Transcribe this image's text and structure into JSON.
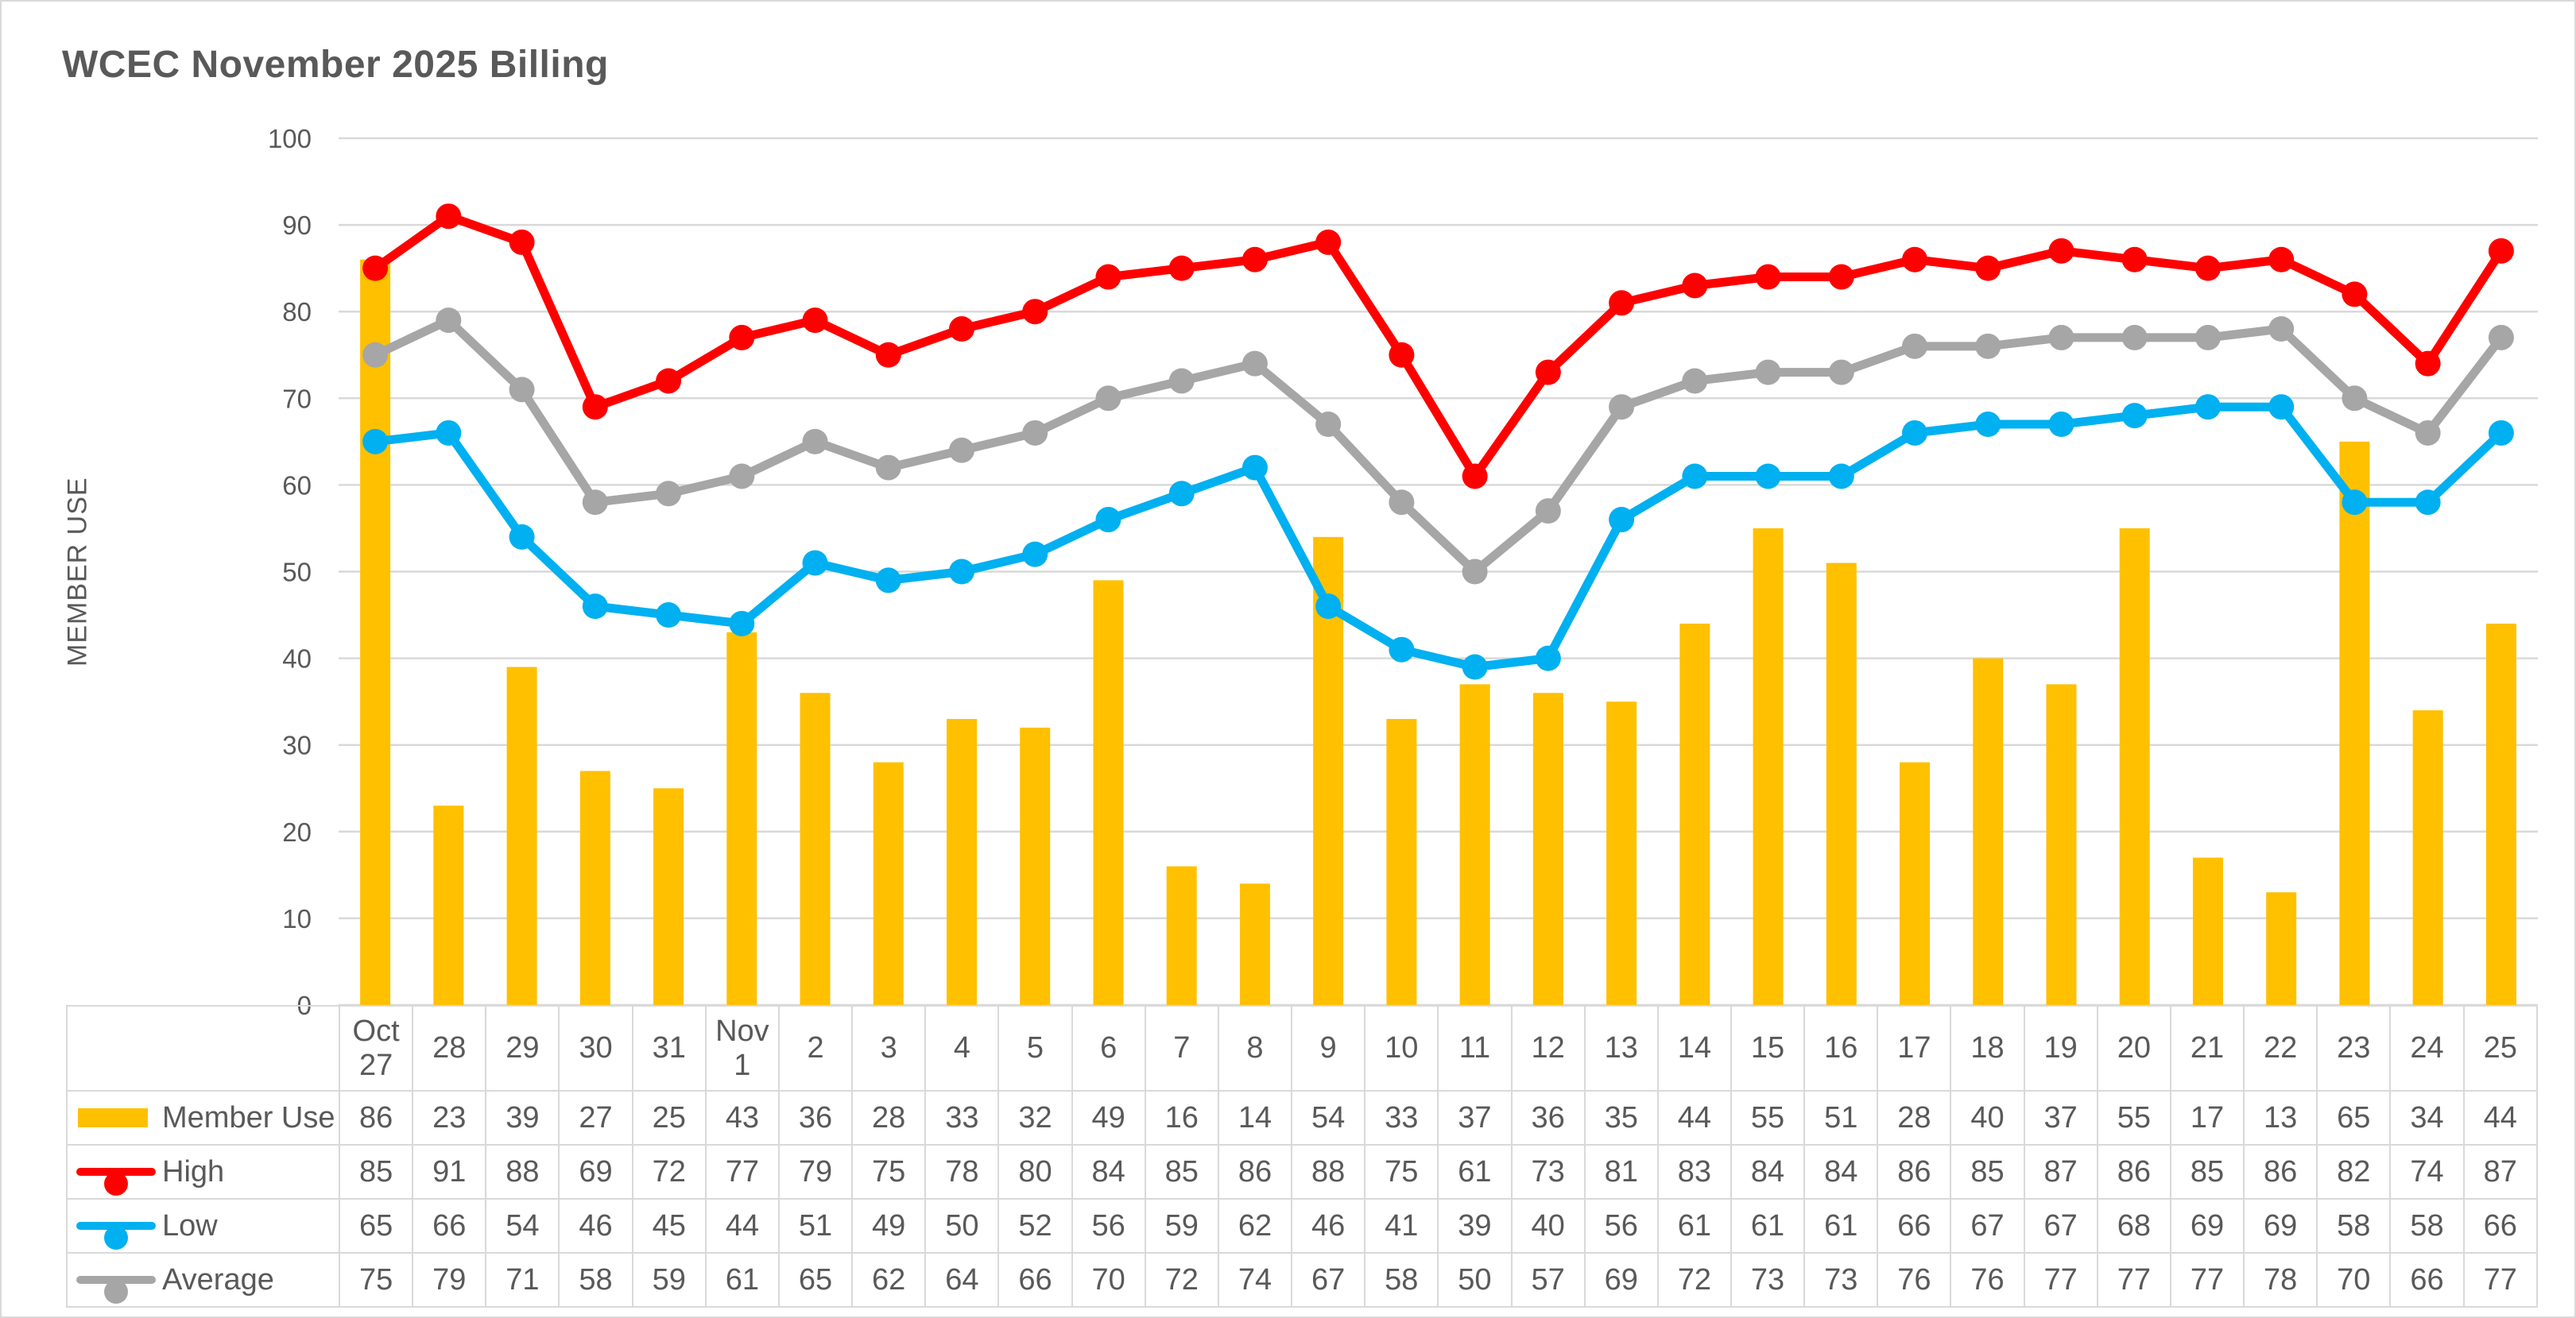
{
  "page": {
    "title": "WCEC November 2025 Billing"
  },
  "chart_data": {
    "type": "bar",
    "subtype": "combo-bar-and-lines",
    "title": "WCEC November 2025 Billing",
    "xlabel": "",
    "ylabel": "MEMBER USE",
    "ylim": [
      0,
      100
    ],
    "ytick_step": 10,
    "grid": true,
    "legend_position": "data-table-left",
    "categories": [
      "Oct\n27",
      "28",
      "29",
      "30",
      "31",
      "Nov\n1",
      "2",
      "3",
      "4",
      "5",
      "6",
      "7",
      "8",
      "9",
      "10",
      "11",
      "12",
      "13",
      "14",
      "15",
      "16",
      "17",
      "18",
      "19",
      "20",
      "21",
      "22",
      "23",
      "24",
      "25"
    ],
    "series": [
      {
        "name": "Member Use",
        "type": "bar",
        "color": "#FFC000",
        "values": [
          86,
          23,
          39,
          27,
          25,
          43,
          36,
          28,
          33,
          32,
          49,
          16,
          14,
          54,
          33,
          37,
          36,
          35,
          44,
          55,
          51,
          28,
          40,
          37,
          55,
          17,
          13,
          65,
          34,
          44
        ]
      },
      {
        "name": "High",
        "type": "line",
        "color": "#FF0000",
        "values": [
          85,
          91,
          88,
          69,
          72,
          77,
          79,
          75,
          78,
          80,
          84,
          85,
          86,
          88,
          75,
          61,
          73,
          81,
          83,
          84,
          84,
          86,
          85,
          87,
          86,
          85,
          86,
          82,
          74,
          87
        ]
      },
      {
        "name": "Low",
        "type": "line",
        "color": "#00B0F0",
        "values": [
          65,
          66,
          54,
          46,
          45,
          44,
          51,
          49,
          50,
          52,
          56,
          59,
          62,
          46,
          41,
          39,
          40,
          56,
          61,
          61,
          61,
          66,
          67,
          67,
          68,
          69,
          69,
          58,
          58,
          66
        ]
      },
      {
        "name": "Average",
        "type": "line",
        "color": "#A6A6A6",
        "values": [
          75,
          79,
          71,
          58,
          59,
          61,
          65,
          62,
          64,
          66,
          70,
          72,
          74,
          67,
          58,
          50,
          57,
          69,
          72,
          73,
          73,
          76,
          76,
          77,
          77,
          77,
          78,
          70,
          66,
          77
        ]
      }
    ],
    "colors": {
      "grid": "#D9D9D9",
      "text": "#595959",
      "table_border": "#D9D9D9"
    }
  }
}
